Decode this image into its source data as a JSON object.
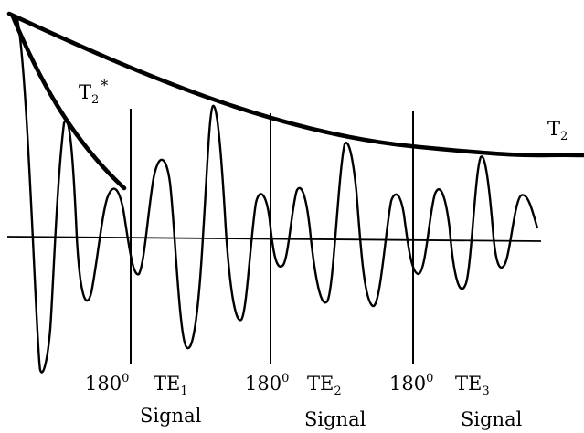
{
  "diagram": {
    "envelope_labels": {
      "t2": {
        "main": "T",
        "sub": "2"
      },
      "t2_star": {
        "main": "T",
        "sub": "2",
        "star": "*"
      }
    },
    "pulse_markers": [
      {
        "angle": "180",
        "degree": "0",
        "te_main": "TE",
        "te_sub": "1",
        "signal": "Signal"
      },
      {
        "angle": "180",
        "degree": "0",
        "te_main": "TE",
        "te_sub": "2",
        "signal": "Signal"
      },
      {
        "angle": "180",
        "degree": "0",
        "te_main": "TE",
        "te_sub": "3",
        "signal": "Signal"
      }
    ],
    "colors": {
      "stroke": "#000000",
      "background": "#ffffff"
    }
  }
}
